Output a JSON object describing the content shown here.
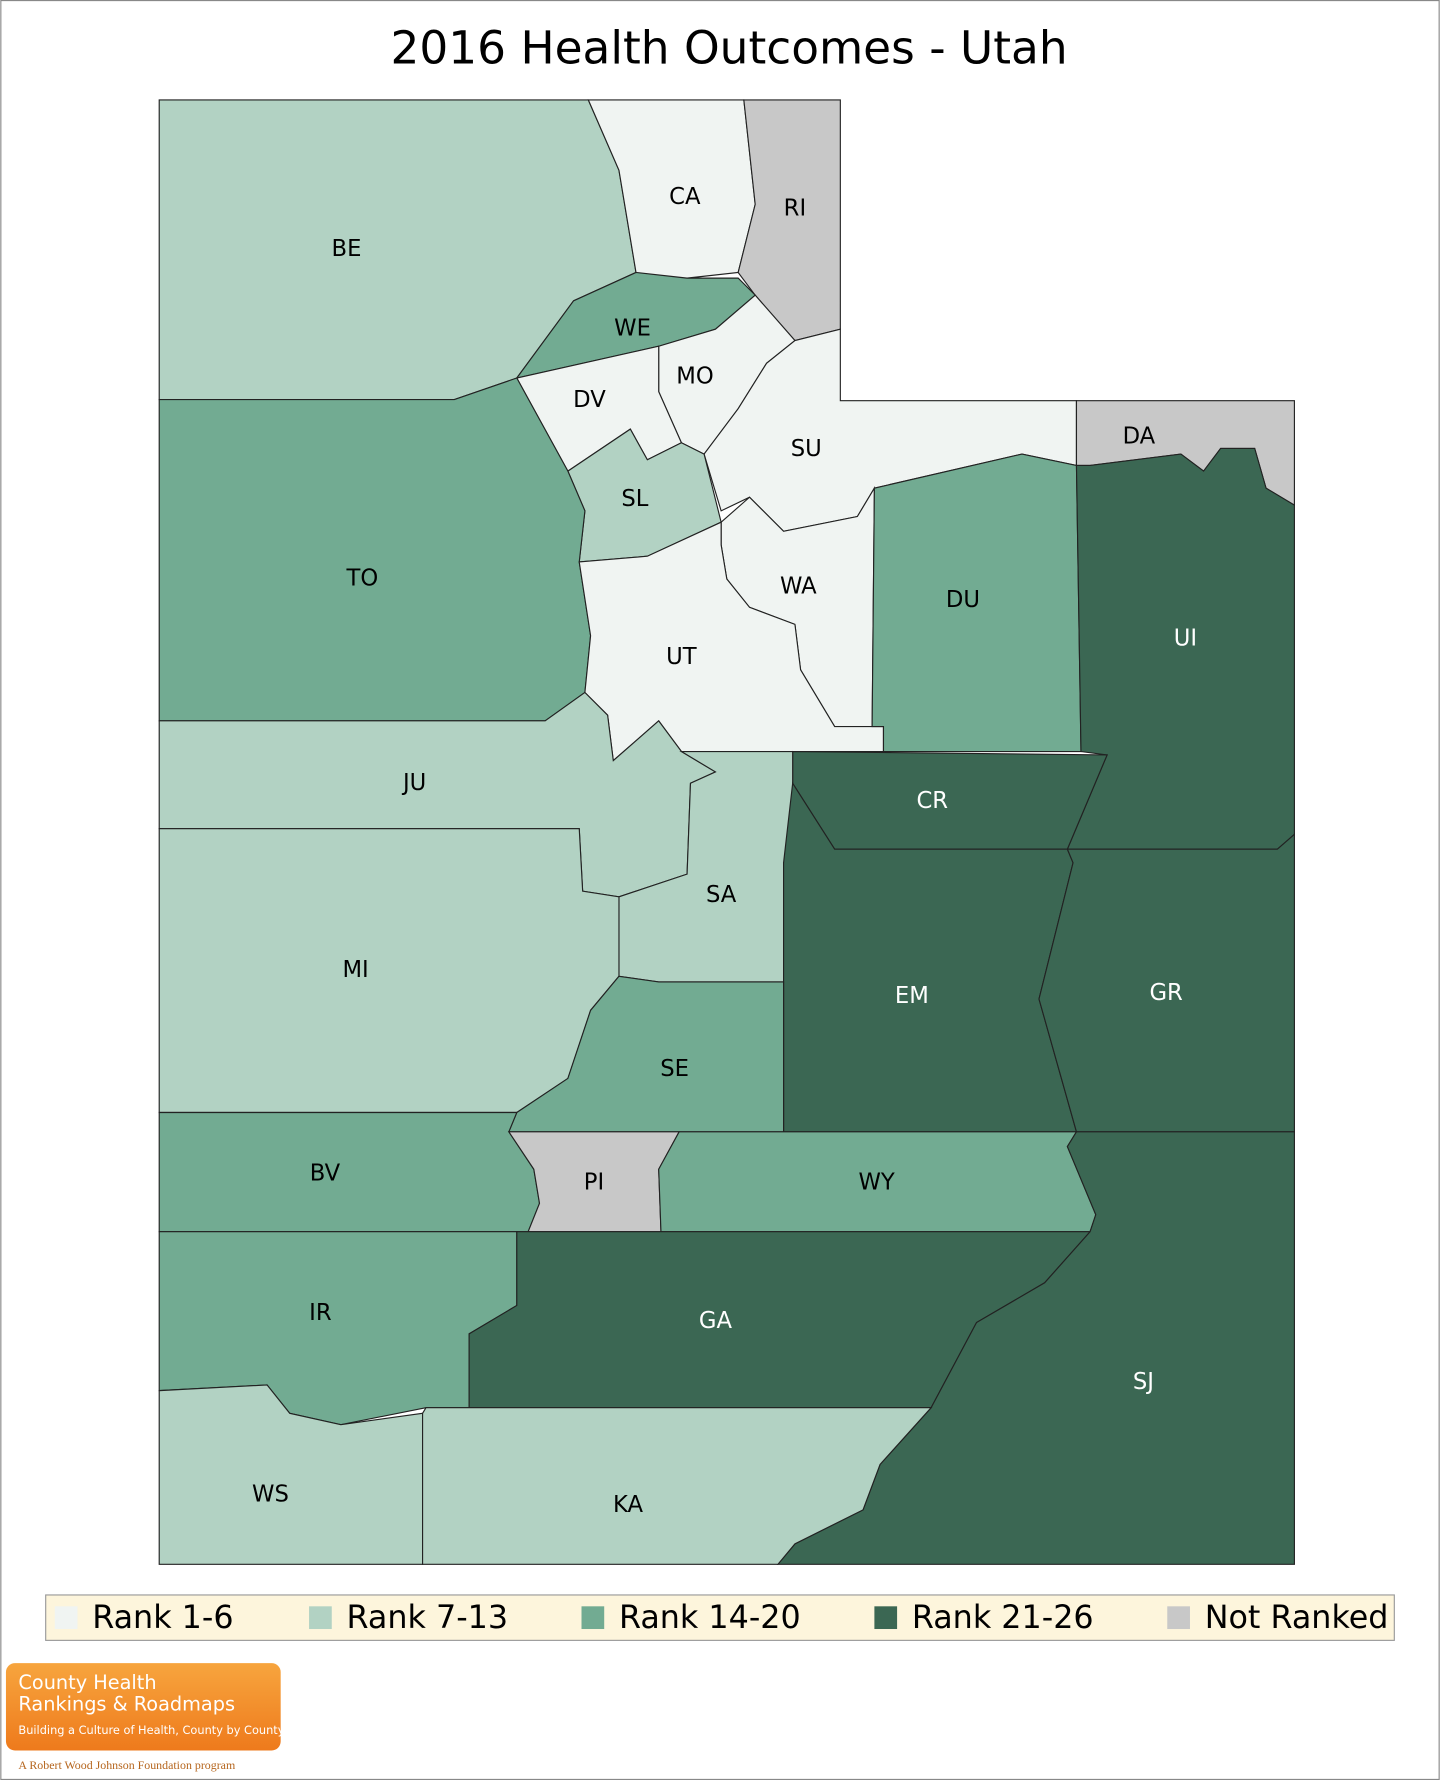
{
  "title": "2016 Health Outcomes - Utah",
  "legend": [
    {
      "label": "Rank 1-6",
      "color": "#f0f4f2"
    },
    {
      "label": "Rank 7-13",
      "color": "#b2d2c3"
    },
    {
      "label": "Rank 14-20",
      "color": "#72ab92"
    },
    {
      "label": "Rank 21-26",
      "color": "#3b6753"
    },
    {
      "label": "Not Ranked",
      "color": "#c8c8c8"
    }
  ],
  "counties": [
    {
      "label": "BE",
      "class": 1
    },
    {
      "label": "CA",
      "class": 0
    },
    {
      "label": "RI",
      "class": 4
    },
    {
      "label": "WE",
      "class": 2
    },
    {
      "label": "MO",
      "class": 0
    },
    {
      "label": "DV",
      "class": 0
    },
    {
      "label": "SU",
      "class": 0
    },
    {
      "label": "DA",
      "class": 4
    },
    {
      "label": "SL",
      "class": 1
    },
    {
      "label": "TO",
      "class": 2
    },
    {
      "label": "WA",
      "class": 0
    },
    {
      "label": "UT",
      "class": 0
    },
    {
      "label": "DU",
      "class": 2
    },
    {
      "label": "UI",
      "class": 3
    },
    {
      "label": "JU",
      "class": 1
    },
    {
      "label": "CR",
      "class": 3
    },
    {
      "label": "SA",
      "class": 1
    },
    {
      "label": "MI",
      "class": 1
    },
    {
      "label": "EM",
      "class": 3
    },
    {
      "label": "GR",
      "class": 3
    },
    {
      "label": "SE",
      "class": 2
    },
    {
      "label": "BV",
      "class": 2
    },
    {
      "label": "PI",
      "class": 4
    },
    {
      "label": "WY",
      "class": 2
    },
    {
      "label": "IR",
      "class": 2
    },
    {
      "label": "GA",
      "class": 3
    },
    {
      "label": "SJ",
      "class": 3
    },
    {
      "label": "WS",
      "class": 1
    },
    {
      "label": "KA",
      "class": 1
    }
  ],
  "logo": {
    "line1": "County Health",
    "line2": "Rankings & Roadmaps",
    "tagline": "Building a Culture of Health, County by County",
    "footer": "A Robert Wood Johnson Foundation program"
  }
}
